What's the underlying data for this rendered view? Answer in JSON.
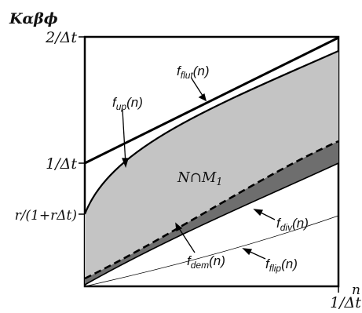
{
  "diagram": {
    "y_axis_label": "Kαβϕ",
    "x_axis_label": "n",
    "y_ticks": [
      "2/Δt",
      "1/Δt",
      "r/(1+rΔt)"
    ],
    "x_tick": "1/Δt",
    "region_label": "N∩M",
    "region_label_sub": "1",
    "curves": {
      "fflut": {
        "base": "f",
        "sub": "flut",
        "arg": "(n)"
      },
      "fup": {
        "base": "f",
        "sub": "up",
        "arg": "(n)"
      },
      "fdiv": {
        "base": "f",
        "sub": "div",
        "arg": "(n)"
      },
      "fdem": {
        "base": "f",
        "sub": "dem",
        "arg": "(n)"
      },
      "fflip": {
        "base": "f",
        "sub": "flip",
        "arg": "(n)"
      }
    },
    "colors": {
      "light_region": "#c4c4c4",
      "dark_region": "#6e6e6e",
      "line": "#000000"
    }
  }
}
